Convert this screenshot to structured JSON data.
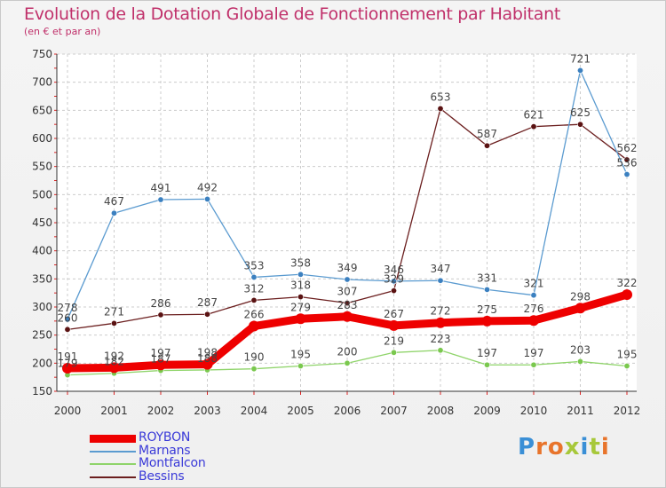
{
  "title": "Evolution de la Dotation Globale de Fonctionnement par Habitant",
  "subtitle": "(en € et par an)",
  "logo": {
    "letters": [
      "P",
      "r",
      "o",
      "x",
      "i",
      "t",
      "i"
    ],
    "colors": [
      "#3a8fd6",
      "#e8742b",
      "#e8742b",
      "#a7c83a",
      "#3a8fd6",
      "#a7c83a",
      "#e8742b"
    ]
  },
  "chart_data": {
    "type": "line",
    "x": [
      "2000",
      "2001",
      "2002",
      "2003",
      "2004",
      "2005",
      "2006",
      "2007",
      "2008",
      "2009",
      "2010",
      "2011",
      "2012"
    ],
    "ylim": [
      150,
      750
    ],
    "yticks": [
      150,
      200,
      250,
      300,
      350,
      400,
      450,
      500,
      550,
      600,
      650,
      700,
      750
    ],
    "grid": true,
    "series": [
      {
        "name": "Bessins",
        "color": "#6b1e1e",
        "marker": "#5a1212",
        "values": [
          260,
          271,
          286,
          287,
          312,
          318,
          307,
          329,
          653,
          587,
          621,
          625,
          562
        ]
      },
      {
        "name": "Marnans",
        "color": "#5b9bd0",
        "marker": "#3b80c0",
        "values": [
          278,
          467,
          491,
          492,
          353,
          358,
          349,
          346,
          347,
          331,
          321,
          721,
          536
        ]
      },
      {
        "name": "Montfalcon",
        "color": "#8fd46a",
        "marker": "#7ac84e",
        "values": [
          179,
          182,
          187,
          188,
          190,
          195,
          200,
          219,
          223,
          197,
          197,
          203,
          195
        ]
      },
      {
        "name": "ROYBON",
        "color": "#ee0000",
        "marker": "#ee0000",
        "values": [
          191,
          192,
          197,
          198,
          266,
          279,
          283,
          267,
          272,
          275,
          276,
          298,
          322
        ]
      }
    ],
    "legend": {
      "position": "bottom-left",
      "entries": [
        {
          "name": "ROYBON",
          "color": "#ee0000",
          "thick": true
        },
        {
          "name": "Marnans",
          "color": "#5b9bd0",
          "thick": false
        },
        {
          "name": "Montfalcon",
          "color": "#8fd46a",
          "thick": false
        },
        {
          "name": "Bessins",
          "color": "#6b1e1e",
          "thick": false
        }
      ]
    }
  }
}
